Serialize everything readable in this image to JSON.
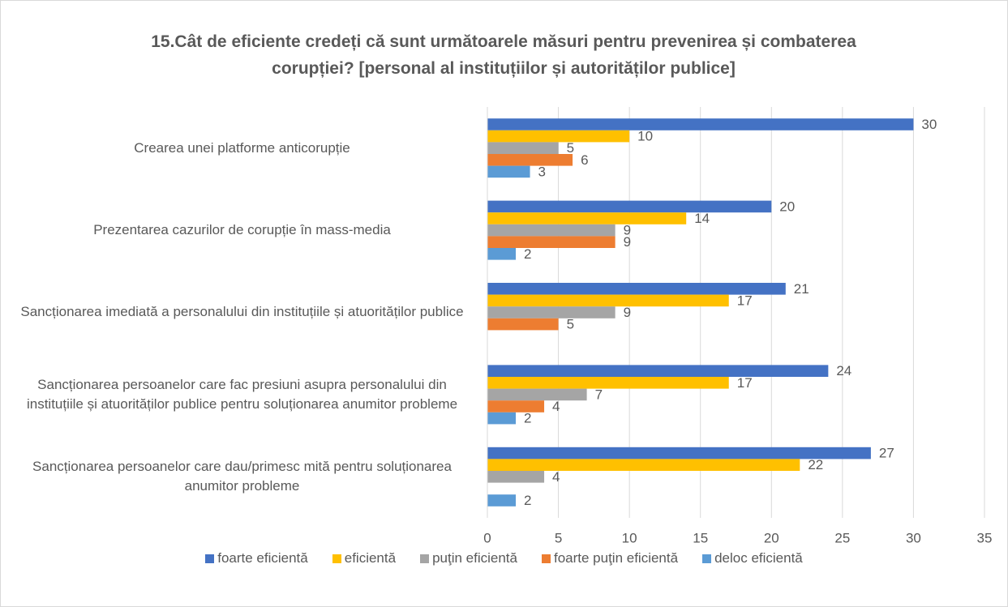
{
  "chart_data": {
    "type": "hbar",
    "title": "15.Cât de eficiente credeți că sunt următoarele măsuri pentru prevenirea și combaterea corupției? [personal al instituțiilor și autorităților publice]",
    "categories": [
      "Crearea unei platforme anticorupție",
      "Prezentarea cazurilor de corupție în mass-media",
      "Sancționarea imediată a personalului din instituțiile și atuorităților publice",
      "Sancționarea persoanelor care fac presiuni asupra personalului din instituțiile și atuorităților publice pentru soluționarea anumitor probleme",
      "Sancționarea persoanelor care dau/primesc mită pentru soluționarea anumitor probleme"
    ],
    "series": [
      {
        "name": "foarte eficientă",
        "color": "#4472c4",
        "values": [
          30,
          20,
          21,
          24,
          27
        ]
      },
      {
        "name": "eficientă",
        "color": "#ffc000",
        "values": [
          10,
          14,
          17,
          17,
          22
        ]
      },
      {
        "name": "puţin eficientă",
        "color": "#a5a5a5",
        "values": [
          5,
          9,
          9,
          7,
          4
        ]
      },
      {
        "name": "foarte puţin eficientă",
        "color": "#ed7d31",
        "values": [
          6,
          9,
          5,
          4,
          null
        ]
      },
      {
        "name": "deloc eficientă",
        "color": "#5b9bd5",
        "values": [
          3,
          2,
          null,
          2,
          2
        ]
      }
    ],
    "xlim": [
      0,
      35
    ],
    "xticks": [
      0,
      5,
      10,
      15,
      20,
      25,
      30,
      35
    ],
    "grid": true,
    "legend": "bottom"
  }
}
